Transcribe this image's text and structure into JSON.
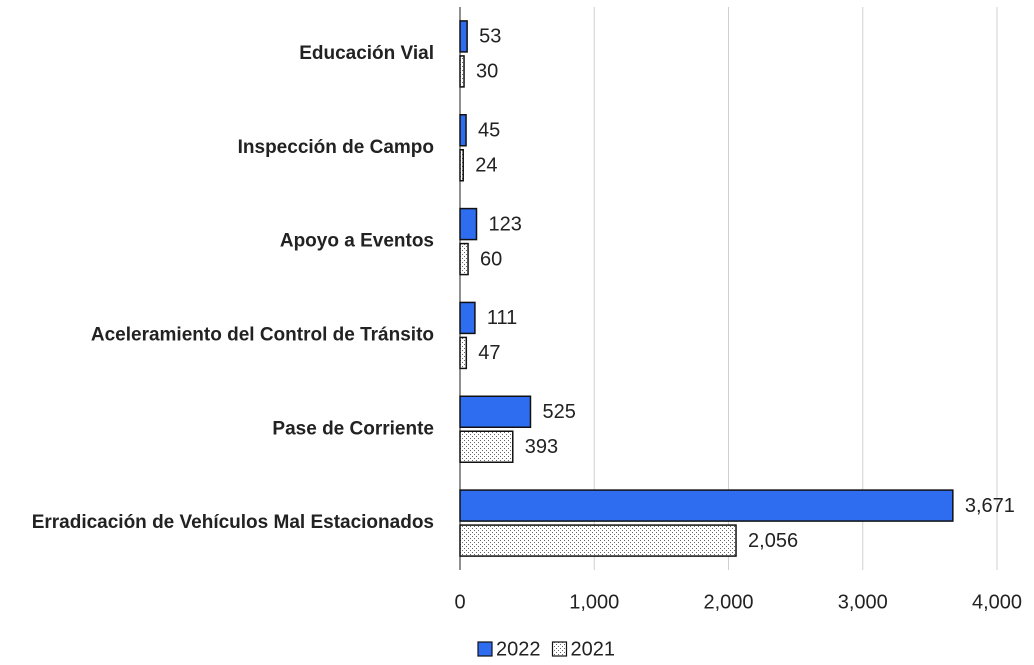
{
  "chart_data": {
    "type": "bar",
    "orientation": "horizontal",
    "categories": [
      "Educación Vial",
      "Inspección de Campo",
      "Apoyo a Eventos",
      "Aceleramiento del Control de Tránsito",
      "Pase de Corriente",
      "Erradicación de Vehículos Mal Estacionados"
    ],
    "series": [
      {
        "name": "2022",
        "color": "#2e6cf0",
        "values": [
          53,
          45,
          123,
          111,
          525,
          3671
        ],
        "value_labels": [
          "53",
          "45",
          "123",
          "111",
          "525",
          "3,671"
        ]
      },
      {
        "name": "2021",
        "color": "#ffffff",
        "pattern": "dots",
        "values": [
          30,
          24,
          60,
          47,
          393,
          2056
        ],
        "value_labels": [
          "30",
          "24",
          "60",
          "47",
          "393",
          "2,056"
        ]
      }
    ],
    "xlim": [
      0,
      4000
    ],
    "xticks": [
      0,
      {
        "value": 1000,
        "label": "1,000"
      },
      {
        "value": 2000,
        "label": "2,000"
      },
      {
        "value": 3000,
        "label": "3,000"
      },
      {
        "value": 4000,
        "label": "4,000"
      }
    ],
    "grid": true,
    "legend": "bottom"
  }
}
